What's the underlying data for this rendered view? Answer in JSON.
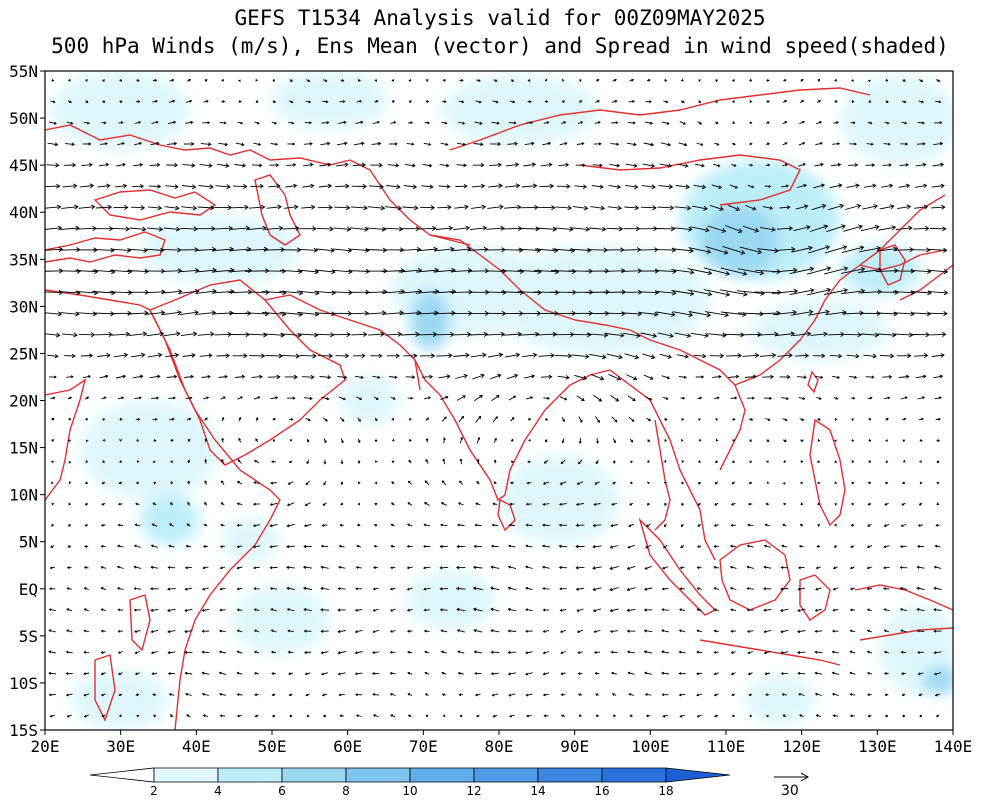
{
  "title": {
    "line1": "GEFS T1534 Analysis valid for 00Z09MAY2025",
    "line2": "500 hPa Winds (m/s), Ens Mean (vector) and Spread in wind speed(shaded)"
  },
  "map": {
    "lon_range": [
      20,
      140
    ],
    "lat_range": [
      -15,
      55
    ],
    "lat_labels": [
      "55N",
      "50N",
      "45N",
      "40N",
      "35N",
      "30N",
      "25N",
      "20N",
      "15N",
      "10N",
      "5N",
      "EQ",
      "5S",
      "10S",
      "15S"
    ],
    "lon_labels": [
      "20E",
      "30E",
      "40E",
      "50E",
      "60E",
      "70E",
      "80E",
      "90E",
      "100E",
      "110E",
      "120E",
      "130E",
      "140E"
    ],
    "coastline_color": "#e03030",
    "vector_color": "#000000"
  },
  "colorbar": {
    "levels": [
      "2",
      "4",
      "6",
      "8",
      "10",
      "12",
      "14",
      "16",
      "18"
    ],
    "colors": [
      "#ffffff",
      "#dff7fc",
      "#bdeef8",
      "#9ad8f2",
      "#7ec4ee",
      "#62aeea",
      "#4f9ae6",
      "#3c87e2",
      "#2a73dc",
      "#1d60d6"
    ]
  },
  "reference_vector": {
    "label": "30"
  }
}
